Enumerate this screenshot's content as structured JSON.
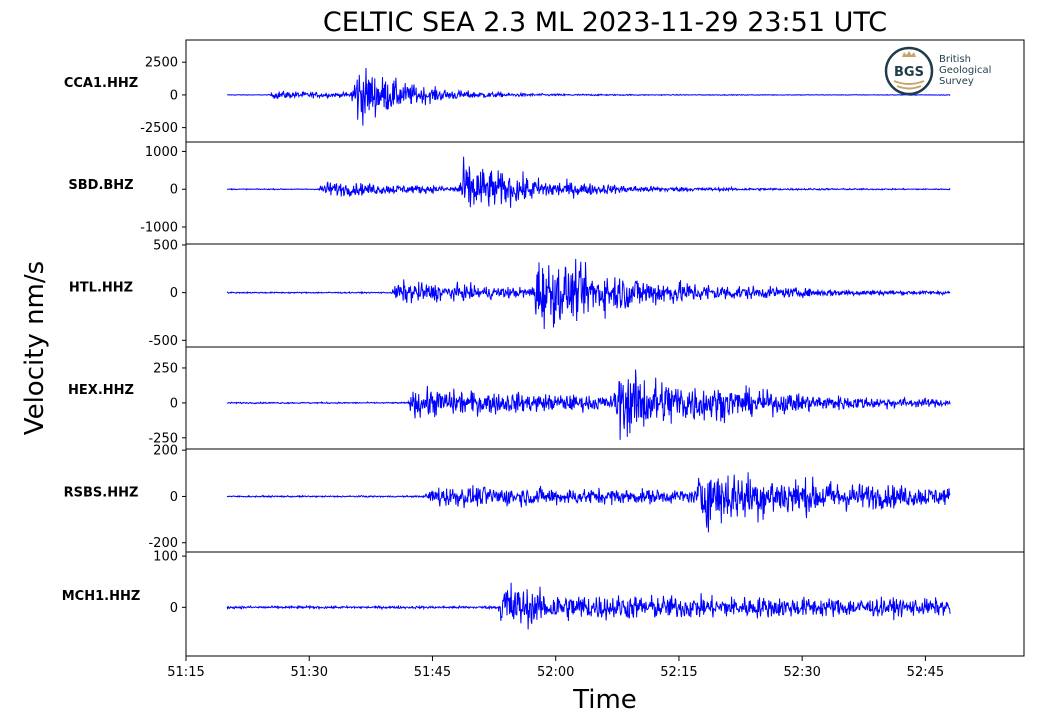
{
  "chart_data": {
    "type": "line",
    "title": "CELTIC SEA 2.3 ML   2023-11-29 23:51 UTC",
    "xlabel": "Time",
    "ylabel": "Velocity nm/s",
    "xlim": [
      "51:15",
      "52:57"
    ],
    "x_ticks": [
      "51:15",
      "51:30",
      "51:45",
      "52:00",
      "52:15",
      "52:30",
      "52:45"
    ],
    "series_color": "#0000ff",
    "time_range": [
      "51:20",
      "52:48"
    ],
    "grid": false,
    "legend": "none",
    "panels": [
      {
        "name": "CCA1.HHZ",
        "ylim": [
          -3600,
          4200
        ],
        "y_ticks": [
          2500,
          0,
          -2500
        ],
        "y_tick_labels": [
          "2500",
          "0",
          "-2500"
        ],
        "noise": 30,
        "arrivals": [
          {
            "t": "51:25",
            "amp": 400,
            "decay": 12
          },
          {
            "t": "51:35",
            "amp": 3200,
            "decay": 6
          }
        ]
      },
      {
        "name": "SBD.BHZ",
        "ylim": [
          -1450,
          1250
        ],
        "y_ticks": [
          1000,
          0,
          -1000
        ],
        "y_tick_labels": [
          "1000",
          "0",
          "-1000"
        ],
        "noise": 15,
        "arrivals": [
          {
            "t": "51:31",
            "amp": 260,
            "decay": 16
          },
          {
            "t": "51:48",
            "amp": 900,
            "decay": 9
          }
        ]
      },
      {
        "name": "HTL.HHZ",
        "ylim": [
          -570,
          510
        ],
        "y_ticks": [
          500,
          0,
          -500
        ],
        "y_tick_labels": [
          "500",
          "0",
          "-500"
        ],
        "noise": 8,
        "arrivals": [
          {
            "t": "51:40",
            "amp": 150,
            "decay": 18
          },
          {
            "t": "51:57",
            "amp": 430,
            "decay": 14
          }
        ]
      },
      {
        "name": "HEX.HHZ",
        "ylim": [
          -330,
          400
        ],
        "y_ticks": [
          250,
          0,
          -250
        ],
        "y_tick_labels": [
          "250",
          "0",
          "-250"
        ],
        "noise": 6,
        "arrivals": [
          {
            "t": "51:42",
            "amp": 130,
            "decay": 30
          },
          {
            "t": "52:07",
            "amp": 260,
            "decay": 14
          }
        ]
      },
      {
        "name": "RSBS.HHZ",
        "ylim": [
          -240,
          205
        ],
        "y_ticks": [
          200,
          0,
          -200
        ],
        "y_tick_labels": [
          "200",
          "0",
          "-200"
        ],
        "noise": 4,
        "arrivals": [
          {
            "t": "51:44",
            "amp": 55,
            "decay": 60
          },
          {
            "t": "52:17",
            "amp": 140,
            "decay": 18
          }
        ]
      },
      {
        "name": "MCH1.HHZ",
        "ylim": [
          -95,
          108
        ],
        "y_ticks": [
          100,
          0
        ],
        "y_tick_labels": [
          "100",
          "0"
        ],
        "noise": 3,
        "arrivals": [
          {
            "t": "51:53",
            "amp": 70,
            "decay": 2
          },
          {
            "t": "51:53",
            "amp": 32,
            "decay": 90
          }
        ]
      }
    ]
  },
  "logo": {
    "abbr": "BGS",
    "lines": [
      "British",
      "Geological",
      "Survey"
    ],
    "color": "#1f3c4a",
    "accent": "#c9a46a"
  }
}
